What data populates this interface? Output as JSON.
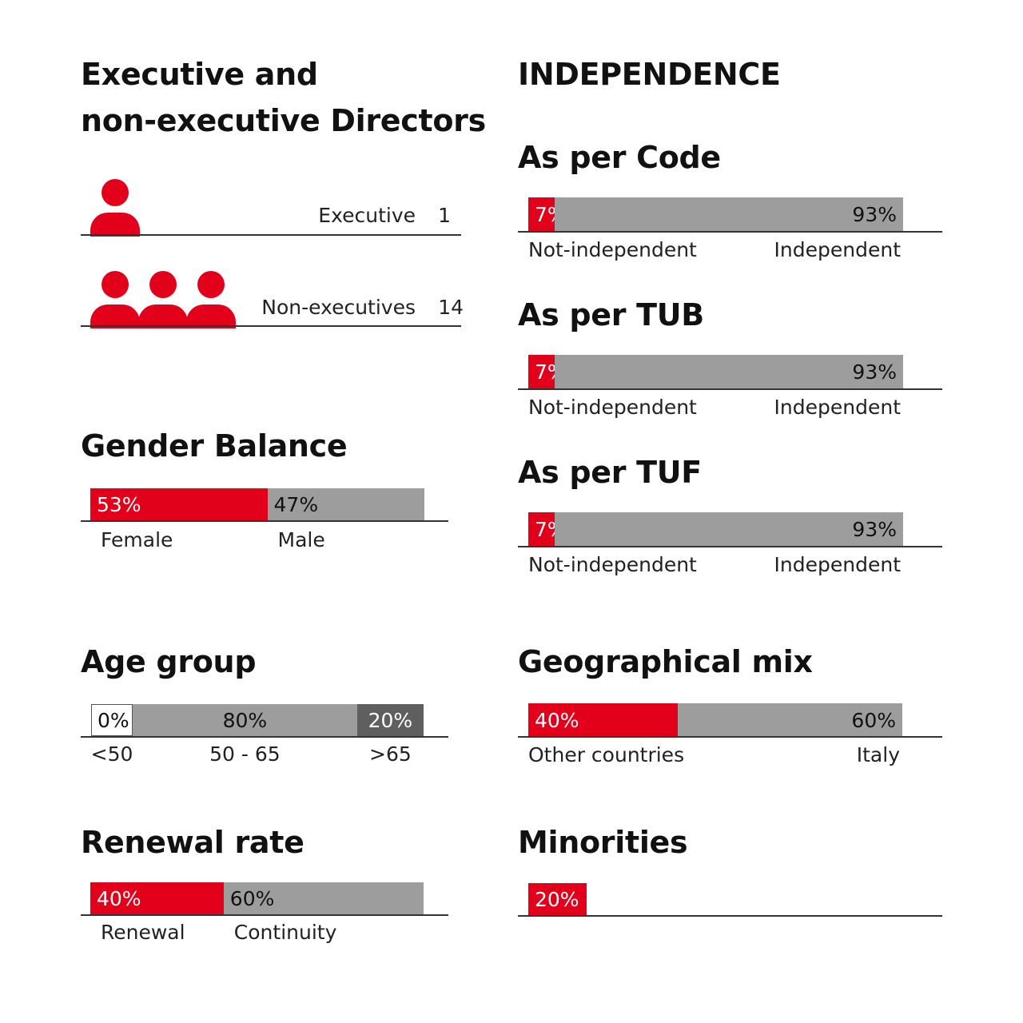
{
  "colors": {
    "red": "#e2001a",
    "grey": "#9d9d9d",
    "dark": "#5f5f5f",
    "white": "#ffffff",
    "text": "#111111"
  },
  "directors": {
    "title_line1": "Executive and",
    "title_line2": "non-executive Directors",
    "executive": {
      "label": "Executive",
      "count": "1",
      "icons": 1
    },
    "non_executive": {
      "label": "Non-executives",
      "count": "14",
      "icons": 3
    }
  },
  "independence": {
    "title": "INDEPENDENCE"
  },
  "chart_data": [
    {
      "id": "gender",
      "type": "bar",
      "stacked": true,
      "title": "Gender Balance",
      "series": [
        {
          "name": "Female",
          "value": 53,
          "label": "53%",
          "color": "#e2001a"
        },
        {
          "name": "Male",
          "value": 47,
          "label": "47%",
          "color": "#9d9d9d"
        }
      ]
    },
    {
      "id": "age",
      "type": "bar",
      "stacked": true,
      "title": "Age group",
      "series": [
        {
          "name": "<50",
          "value": 0,
          "label": "0%",
          "color": "#ffffff"
        },
        {
          "name": "50 - 65",
          "value": 80,
          "label": "80%",
          "color": "#9d9d9d"
        },
        {
          "name": ">65",
          "value": 20,
          "label": "20%",
          "color": "#5f5f5f"
        }
      ]
    },
    {
      "id": "renewal",
      "type": "bar",
      "stacked": true,
      "title": "Renewal rate",
      "series": [
        {
          "name": "Renewal",
          "value": 40,
          "label": "40%",
          "color": "#e2001a"
        },
        {
          "name": "Continuity",
          "value": 60,
          "label": "60%",
          "color": "#9d9d9d"
        }
      ]
    },
    {
      "id": "code",
      "type": "bar",
      "stacked": true,
      "title": "As per Code",
      "series": [
        {
          "name": "Not-independent",
          "value": 7,
          "label": "7%",
          "color": "#e2001a"
        },
        {
          "name": "Independent",
          "value": 93,
          "label": "93%",
          "color": "#9d9d9d"
        }
      ]
    },
    {
      "id": "tub",
      "type": "bar",
      "stacked": true,
      "title": "As per TUB",
      "series": [
        {
          "name": "Not-independent",
          "value": 7,
          "label": "7%",
          "color": "#e2001a"
        },
        {
          "name": "Independent",
          "value": 93,
          "label": "93%",
          "color": "#9d9d9d"
        }
      ]
    },
    {
      "id": "tuf",
      "type": "bar",
      "stacked": true,
      "title": "As per TUF",
      "series": [
        {
          "name": "Not-independent",
          "value": 7,
          "label": "7%",
          "color": "#e2001a"
        },
        {
          "name": "Independent",
          "value": 93,
          "label": "93%",
          "color": "#9d9d9d"
        }
      ]
    },
    {
      "id": "geo",
      "type": "bar",
      "stacked": true,
      "title": "Geographical mix",
      "series": [
        {
          "name": "Other countries",
          "value": 40,
          "label": "40%",
          "color": "#e2001a"
        },
        {
          "name": "Italy",
          "value": 60,
          "label": "60%",
          "color": "#9d9d9d"
        }
      ]
    },
    {
      "id": "minorities",
      "type": "bar",
      "stacked": true,
      "title": "Minorities",
      "show_remainder": false,
      "series": [
        {
          "name": "",
          "value": 20,
          "label": "20%",
          "color": "#e2001a"
        }
      ]
    }
  ]
}
